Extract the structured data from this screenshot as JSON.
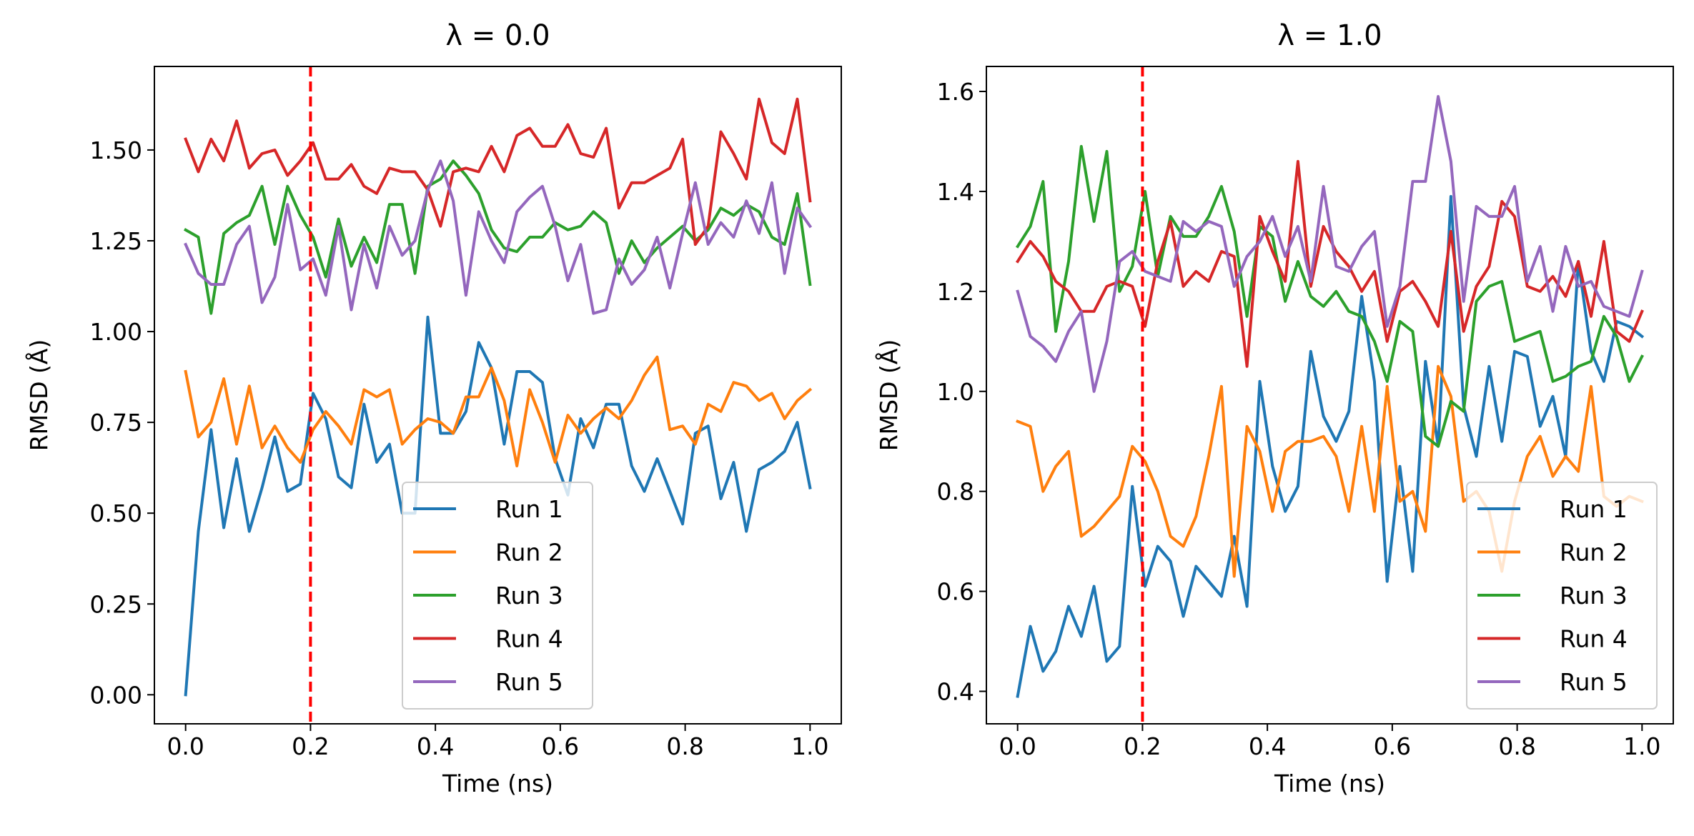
{
  "chart_data": [
    {
      "type": "line",
      "title": "λ = 0.0",
      "xlabel": "Time (ns)",
      "ylabel": "RMSD (Å)",
      "xlim": [
        -0.05,
        1.05
      ],
      "ylim": [
        -0.08,
        1.73
      ],
      "xticks": [
        0.0,
        0.2,
        0.4,
        0.6,
        0.8,
        1.0
      ],
      "xtick_labels": [
        "0.0",
        "0.2",
        "0.4",
        "0.6",
        "0.8",
        "1.0"
      ],
      "yticks": [
        0.0,
        0.25,
        0.5,
        0.75,
        1.0,
        1.25,
        1.5
      ],
      "ytick_labels": [
        "0.00",
        "0.25",
        "0.50",
        "0.75",
        "1.00",
        "1.25",
        "1.50"
      ],
      "vline": {
        "x": 0.2,
        "color": "#ff0000",
        "style": "dashed"
      },
      "legend_position": "lower-center",
      "x": [
        0.0,
        0.0204,
        0.0408,
        0.0612,
        0.0816,
        0.102,
        0.1224,
        0.1429,
        0.1633,
        0.1837,
        0.2041,
        0.2245,
        0.2449,
        0.2653,
        0.2857,
        0.3061,
        0.3265,
        0.3469,
        0.3673,
        0.3878,
        0.4082,
        0.4286,
        0.449,
        0.4694,
        0.4898,
        0.5102,
        0.5306,
        0.551,
        0.5714,
        0.5918,
        0.6122,
        0.6327,
        0.6531,
        0.6735,
        0.6939,
        0.7143,
        0.7347,
        0.7551,
        0.7755,
        0.7959,
        0.8163,
        0.8367,
        0.8571,
        0.8776,
        0.898,
        0.9184,
        0.9388,
        0.9592,
        0.9796,
        1.0
      ],
      "series": [
        {
          "name": "Run 1",
          "color": "#1f77b4",
          "values": [
            0.0,
            0.45,
            0.73,
            0.46,
            0.65,
            0.45,
            0.57,
            0.71,
            0.56,
            0.58,
            0.83,
            0.76,
            0.6,
            0.57,
            0.8,
            0.64,
            0.69,
            0.5,
            0.5,
            1.04,
            0.72,
            0.72,
            0.78,
            0.97,
            0.9,
            0.69,
            0.89,
            0.89,
            0.86,
            0.65,
            0.55,
            0.76,
            0.68,
            0.8,
            0.8,
            0.63,
            0.56,
            0.65,
            0.56,
            0.47,
            0.72,
            0.74,
            0.54,
            0.64,
            0.45,
            0.62,
            0.64,
            0.67,
            0.75,
            0.57
          ]
        },
        {
          "name": "Run 2",
          "color": "#ff7f0e",
          "values": [
            0.89,
            0.71,
            0.75,
            0.87,
            0.69,
            0.85,
            0.68,
            0.74,
            0.68,
            0.64,
            0.73,
            0.78,
            0.74,
            0.69,
            0.84,
            0.82,
            0.84,
            0.69,
            0.73,
            0.76,
            0.75,
            0.72,
            0.82,
            0.82,
            0.9,
            0.81,
            0.63,
            0.84,
            0.75,
            0.64,
            0.77,
            0.72,
            0.76,
            0.79,
            0.76,
            0.81,
            0.88,
            0.93,
            0.73,
            0.74,
            0.69,
            0.8,
            0.78,
            0.86,
            0.85,
            0.81,
            0.83,
            0.76,
            0.81,
            0.84
          ]
        },
        {
          "name": "Run 3",
          "color": "#2ca02c",
          "values": [
            1.28,
            1.26,
            1.05,
            1.27,
            1.3,
            1.32,
            1.4,
            1.24,
            1.4,
            1.32,
            1.26,
            1.15,
            1.31,
            1.18,
            1.26,
            1.19,
            1.35,
            1.35,
            1.16,
            1.4,
            1.42,
            1.47,
            1.43,
            1.38,
            1.28,
            1.23,
            1.22,
            1.26,
            1.26,
            1.3,
            1.28,
            1.29,
            1.33,
            1.3,
            1.16,
            1.25,
            1.19,
            1.23,
            1.26,
            1.29,
            1.25,
            1.28,
            1.34,
            1.32,
            1.35,
            1.33,
            1.26,
            1.24,
            1.38,
            1.13
          ]
        },
        {
          "name": "Run 4",
          "color": "#d62728",
          "values": [
            1.53,
            1.44,
            1.53,
            1.47,
            1.58,
            1.45,
            1.49,
            1.5,
            1.43,
            1.47,
            1.52,
            1.42,
            1.42,
            1.46,
            1.4,
            1.38,
            1.45,
            1.44,
            1.44,
            1.39,
            1.29,
            1.44,
            1.45,
            1.44,
            1.51,
            1.44,
            1.54,
            1.56,
            1.51,
            1.51,
            1.57,
            1.49,
            1.48,
            1.56,
            1.34,
            1.41,
            1.41,
            1.43,
            1.45,
            1.53,
            1.24,
            1.29,
            1.55,
            1.49,
            1.42,
            1.64,
            1.52,
            1.49,
            1.64,
            1.36
          ]
        },
        {
          "name": "Run 5",
          "color": "#9467bd",
          "values": [
            1.24,
            1.16,
            1.13,
            1.13,
            1.24,
            1.29,
            1.08,
            1.15,
            1.35,
            1.17,
            1.2,
            1.1,
            1.29,
            1.06,
            1.24,
            1.12,
            1.29,
            1.21,
            1.25,
            1.39,
            1.47,
            1.36,
            1.1,
            1.33,
            1.25,
            1.19,
            1.33,
            1.37,
            1.4,
            1.29,
            1.14,
            1.24,
            1.05,
            1.06,
            1.2,
            1.13,
            1.17,
            1.26,
            1.12,
            1.27,
            1.41,
            1.24,
            1.3,
            1.26,
            1.36,
            1.27,
            1.41,
            1.16,
            1.34,
            1.29
          ]
        }
      ]
    },
    {
      "type": "line",
      "title": "λ = 1.0",
      "xlabel": "Time (ns)",
      "ylabel": "RMSD (Å)",
      "xlim": [
        -0.05,
        1.05
      ],
      "ylim": [
        0.335,
        1.65
      ],
      "xticks": [
        0.0,
        0.2,
        0.4,
        0.6,
        0.8,
        1.0
      ],
      "xtick_labels": [
        "0.0",
        "0.2",
        "0.4",
        "0.6",
        "0.8",
        "1.0"
      ],
      "yticks": [
        0.4,
        0.6,
        0.8,
        1.0,
        1.2,
        1.4,
        1.6
      ],
      "ytick_labels": [
        "0.4",
        "0.6",
        "0.8",
        "1.0",
        "1.2",
        "1.4",
        "1.6"
      ],
      "vline": {
        "x": 0.2,
        "color": "#ff0000",
        "style": "dashed"
      },
      "legend_position": "lower-right",
      "x": [
        0.0,
        0.0204,
        0.0408,
        0.0612,
        0.0816,
        0.102,
        0.1224,
        0.1429,
        0.1633,
        0.1837,
        0.2041,
        0.2245,
        0.2449,
        0.2653,
        0.2857,
        0.3061,
        0.3265,
        0.3469,
        0.3673,
        0.3878,
        0.4082,
        0.4286,
        0.449,
        0.4694,
        0.4898,
        0.5102,
        0.5306,
        0.551,
        0.5714,
        0.5918,
        0.6122,
        0.6327,
        0.6531,
        0.6735,
        0.6939,
        0.7143,
        0.7347,
        0.7551,
        0.7755,
        0.7959,
        0.8163,
        0.8367,
        0.8571,
        0.8776,
        0.898,
        0.9184,
        0.9388,
        0.9592,
        0.9796,
        1.0
      ],
      "series": [
        {
          "name": "Run 1",
          "color": "#1f77b4",
          "values": [
            0.39,
            0.53,
            0.44,
            0.48,
            0.57,
            0.51,
            0.61,
            0.46,
            0.49,
            0.81,
            0.61,
            0.69,
            0.66,
            0.55,
            0.65,
            0.62,
            0.59,
            0.71,
            0.57,
            1.02,
            0.85,
            0.76,
            0.81,
            1.08,
            0.95,
            0.9,
            0.96,
            1.19,
            1.02,
            0.62,
            0.85,
            0.64,
            1.06,
            0.89,
            1.39,
            0.97,
            0.87,
            1.05,
            0.9,
            1.08,
            1.07,
            0.93,
            0.99,
            0.87,
            1.26,
            1.08,
            1.02,
            1.14,
            1.13,
            1.11
          ]
        },
        {
          "name": "Run 2",
          "color": "#ff7f0e",
          "values": [
            0.94,
            0.93,
            0.8,
            0.85,
            0.88,
            0.71,
            0.73,
            0.76,
            0.79,
            0.89,
            0.86,
            0.8,
            0.71,
            0.69,
            0.75,
            0.87,
            1.01,
            0.63,
            0.93,
            0.88,
            0.76,
            0.88,
            0.9,
            0.9,
            0.91,
            0.87,
            0.76,
            0.93,
            0.76,
            1.01,
            0.78,
            0.8,
            0.72,
            1.05,
            0.99,
            0.78,
            0.8,
            0.76,
            0.64,
            0.78,
            0.87,
            0.91,
            0.83,
            0.87,
            0.84,
            1.01,
            0.79,
            0.77,
            0.79,
            0.78
          ]
        },
        {
          "name": "Run 3",
          "color": "#2ca02c",
          "values": [
            1.29,
            1.33,
            1.42,
            1.12,
            1.26,
            1.49,
            1.34,
            1.48,
            1.2,
            1.25,
            1.4,
            1.23,
            1.35,
            1.31,
            1.31,
            1.35,
            1.41,
            1.32,
            1.15,
            1.33,
            1.31,
            1.18,
            1.26,
            1.19,
            1.17,
            1.2,
            1.16,
            1.15,
            1.1,
            1.02,
            1.14,
            1.12,
            0.91,
            0.89,
            0.98,
            0.96,
            1.18,
            1.21,
            1.22,
            1.1,
            1.11,
            1.12,
            1.02,
            1.03,
            1.05,
            1.06,
            1.15,
            1.11,
            1.02,
            1.07
          ]
        },
        {
          "name": "Run 4",
          "color": "#d62728",
          "values": [
            1.26,
            1.3,
            1.27,
            1.22,
            1.2,
            1.16,
            1.16,
            1.21,
            1.22,
            1.21,
            1.13,
            1.26,
            1.34,
            1.21,
            1.24,
            1.22,
            1.28,
            1.27,
            1.05,
            1.35,
            1.28,
            1.22,
            1.46,
            1.21,
            1.33,
            1.28,
            1.25,
            1.2,
            1.24,
            1.1,
            1.2,
            1.22,
            1.18,
            1.13,
            1.32,
            1.12,
            1.21,
            1.25,
            1.38,
            1.35,
            1.21,
            1.2,
            1.23,
            1.19,
            1.26,
            1.15,
            1.3,
            1.12,
            1.1,
            1.16
          ]
        },
        {
          "name": "Run 5",
          "color": "#9467bd",
          "values": [
            1.2,
            1.11,
            1.09,
            1.06,
            1.12,
            1.16,
            1.0,
            1.1,
            1.26,
            1.28,
            1.24,
            1.23,
            1.22,
            1.34,
            1.32,
            1.34,
            1.33,
            1.21,
            1.27,
            1.3,
            1.35,
            1.27,
            1.33,
            1.22,
            1.41,
            1.25,
            1.24,
            1.29,
            1.32,
            1.13,
            1.21,
            1.42,
            1.42,
            1.59,
            1.46,
            1.18,
            1.37,
            1.35,
            1.35,
            1.41,
            1.22,
            1.29,
            1.16,
            1.29,
            1.21,
            1.22,
            1.17,
            1.16,
            1.15,
            1.24
          ]
        }
      ]
    }
  ]
}
